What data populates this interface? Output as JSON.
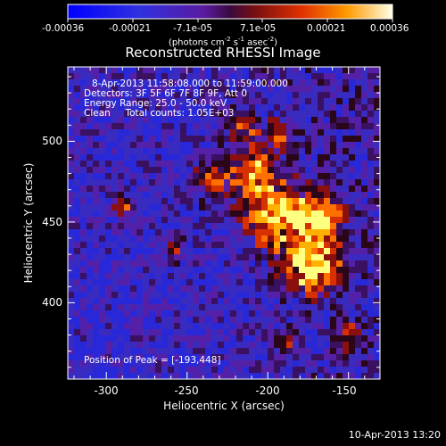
{
  "title": "Reconstructed RHESSI Image",
  "colorbar": {
    "tick_labels": [
      "-0.00036",
      "-0.00021",
      "-7.1e-05",
      "7.1e-05",
      "0.00021",
      "0.00036"
    ],
    "units_prefix": "(photons cm",
    "units_exp1": "-2",
    "units_mid1": " s",
    "units_exp2": "-1",
    "units_mid2": " asec",
    "units_exp3": "-2",
    "units_suffix": ")"
  },
  "info_lines": [
    "8-Apr-2013 11:58:08.000 to 11:59:00.000",
    "Detectors: 3F 5F 6F 7F 8F 9F, Att 0",
    "Energy Range: 25.0 - 50.0 keV",
    "Clean     Total counts: 1.05E+03"
  ],
  "peak_text": "Position of Peak = [-193,448]",
  "axes": {
    "xlabel": "Heliocentric X (arcsec)",
    "ylabel": "Heliocentric Y (arcsec)",
    "x_ticks": [
      "-300",
      "-250",
      "-200",
      "-150"
    ],
    "y_ticks": [
      "400",
      "450",
      "500"
    ]
  },
  "timestamp": "10-Apr-2013 13:20",
  "colors": {
    "background": "#000000",
    "foreground": "#ffffff"
  }
}
